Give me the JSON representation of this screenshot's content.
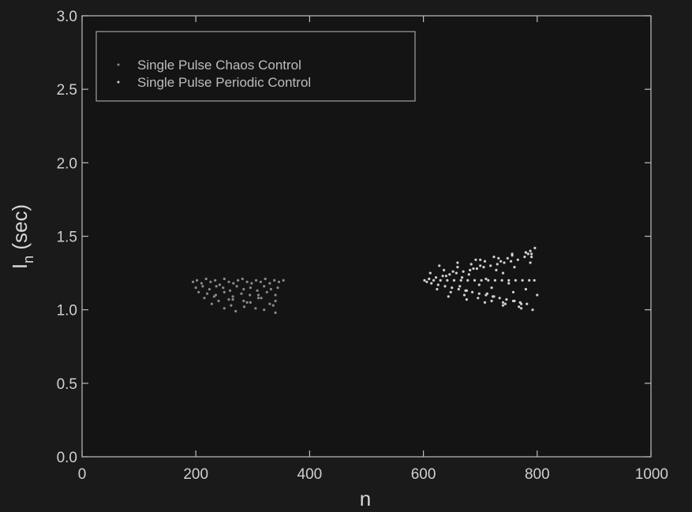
{
  "chart_data": {
    "type": "scatter",
    "xlabel": "n",
    "ylabel": "I",
    "ylabel_subscript": "n",
    "ylabel_suffix": " (sec)",
    "xlim": [
      0,
      1000
    ],
    "ylim": [
      0.0,
      3.0
    ],
    "xticks": [
      "0",
      "200",
      "400",
      "600",
      "800",
      "1000"
    ],
    "yticks": [
      "0.0",
      "0.5",
      "1.0",
      "1.5",
      "2.0",
      "2.5",
      "3.0"
    ],
    "legend_position": "top-left",
    "grid": false,
    "series": [
      {
        "name": "Single Pulse Chaos Control",
        "color": "#8a8a8a",
        "x": [
          195,
          202,
          210,
          218,
          226,
          234,
          242,
          250,
          258,
          266,
          274,
          282,
          290,
          298,
          306,
          314,
          322,
          330,
          338,
          346,
          354,
          200,
          212,
          224,
          236,
          248,
          260,
          272,
          284,
          296,
          308,
          320,
          332,
          344,
          205,
          220,
          235,
          250,
          265,
          280,
          295,
          310,
          325,
          340,
          215,
          240,
          265,
          290,
          315,
          340,
          228,
          262,
          296,
          330,
          250,
          285,
          320,
          270,
          305,
          340,
          232,
          258,
          284,
          310,
          336
        ],
        "y": [
          1.19,
          1.2,
          1.18,
          1.21,
          1.19,
          1.2,
          1.17,
          1.21,
          1.19,
          1.18,
          1.2,
          1.21,
          1.19,
          1.18,
          1.2,
          1.19,
          1.21,
          1.18,
          1.2,
          1.19,
          1.2,
          1.15,
          1.16,
          1.14,
          1.16,
          1.15,
          1.13,
          1.16,
          1.14,
          1.15,
          1.13,
          1.16,
          1.14,
          1.15,
          1.12,
          1.11,
          1.1,
          1.12,
          1.09,
          1.11,
          1.1,
          1.08,
          1.12,
          1.1,
          1.08,
          1.06,
          1.07,
          1.05,
          1.08,
          1.06,
          1.04,
          1.03,
          1.05,
          1.04,
          1.01,
          1.02,
          1.0,
          0.99,
          1.01,
          0.98,
          1.09,
          1.07,
          1.06,
          1.1,
          1.03
        ]
      },
      {
        "name": "Single Pulse Periodic Control",
        "color": "#d0d0d0",
        "x": [
          602,
          606,
          610,
          614,
          618,
          622,
          626,
          630,
          634,
          638,
          642,
          646,
          650,
          654,
          658,
          662,
          666,
          670,
          674,
          678,
          682,
          686,
          690,
          694,
          698,
          702,
          706,
          710,
          714,
          718,
          722,
          726,
          730,
          734,
          738,
          742,
          746,
          750,
          754,
          758,
          762,
          766,
          770,
          774,
          778,
          782,
          786,
          790,
          795,
          612,
          624,
          636,
          648,
          660,
          672,
          684,
          696,
          708,
          720,
          732,
          744,
          756,
          768,
          780,
          792,
          628,
          644,
          660,
          676,
          692,
          708,
          724,
          740,
          756,
          772,
          788,
          640,
          664,
          688,
          712,
          736,
          760,
          784,
          652,
          676,
          700,
          724,
          748,
          772,
          796,
          668,
          698,
          728,
          758,
          788,
          680,
          720,
          760,
          800,
          700,
          740,
          780,
          710,
          750,
          790,
          740,
          780
        ],
        "y": [
          1.2,
          1.19,
          1.21,
          1.18,
          1.2,
          1.22,
          1.17,
          1.2,
          1.23,
          1.16,
          1.2,
          1.24,
          1.15,
          1.2,
          1.25,
          1.14,
          1.2,
          1.26,
          1.13,
          1.2,
          1.27,
          1.12,
          1.2,
          1.28,
          1.11,
          1.2,
          1.29,
          1.1,
          1.2,
          1.3,
          1.09,
          1.2,
          1.31,
          1.08,
          1.2,
          1.32,
          1.07,
          1.2,
          1.33,
          1.06,
          1.2,
          1.34,
          1.05,
          1.2,
          1.36,
          1.04,
          1.2,
          1.38,
          1.2,
          1.25,
          1.14,
          1.27,
          1.12,
          1.29,
          1.1,
          1.31,
          1.08,
          1.33,
          1.06,
          1.35,
          1.04,
          1.37,
          1.02,
          1.39,
          1.0,
          1.3,
          1.09,
          1.32,
          1.07,
          1.34,
          1.05,
          1.36,
          1.03,
          1.38,
          1.01,
          1.4,
          1.23,
          1.16,
          1.28,
          1.11,
          1.33,
          1.06,
          1.38,
          1.26,
          1.13,
          1.3,
          1.09,
          1.35,
          1.04,
          1.42,
          1.22,
          1.17,
          1.27,
          1.12,
          1.32,
          1.24,
          1.15,
          1.29,
          1.1,
          1.34,
          1.05,
          1.39,
          1.21,
          1.18,
          1.36,
          1.25,
          1.14
        ]
      }
    ]
  }
}
